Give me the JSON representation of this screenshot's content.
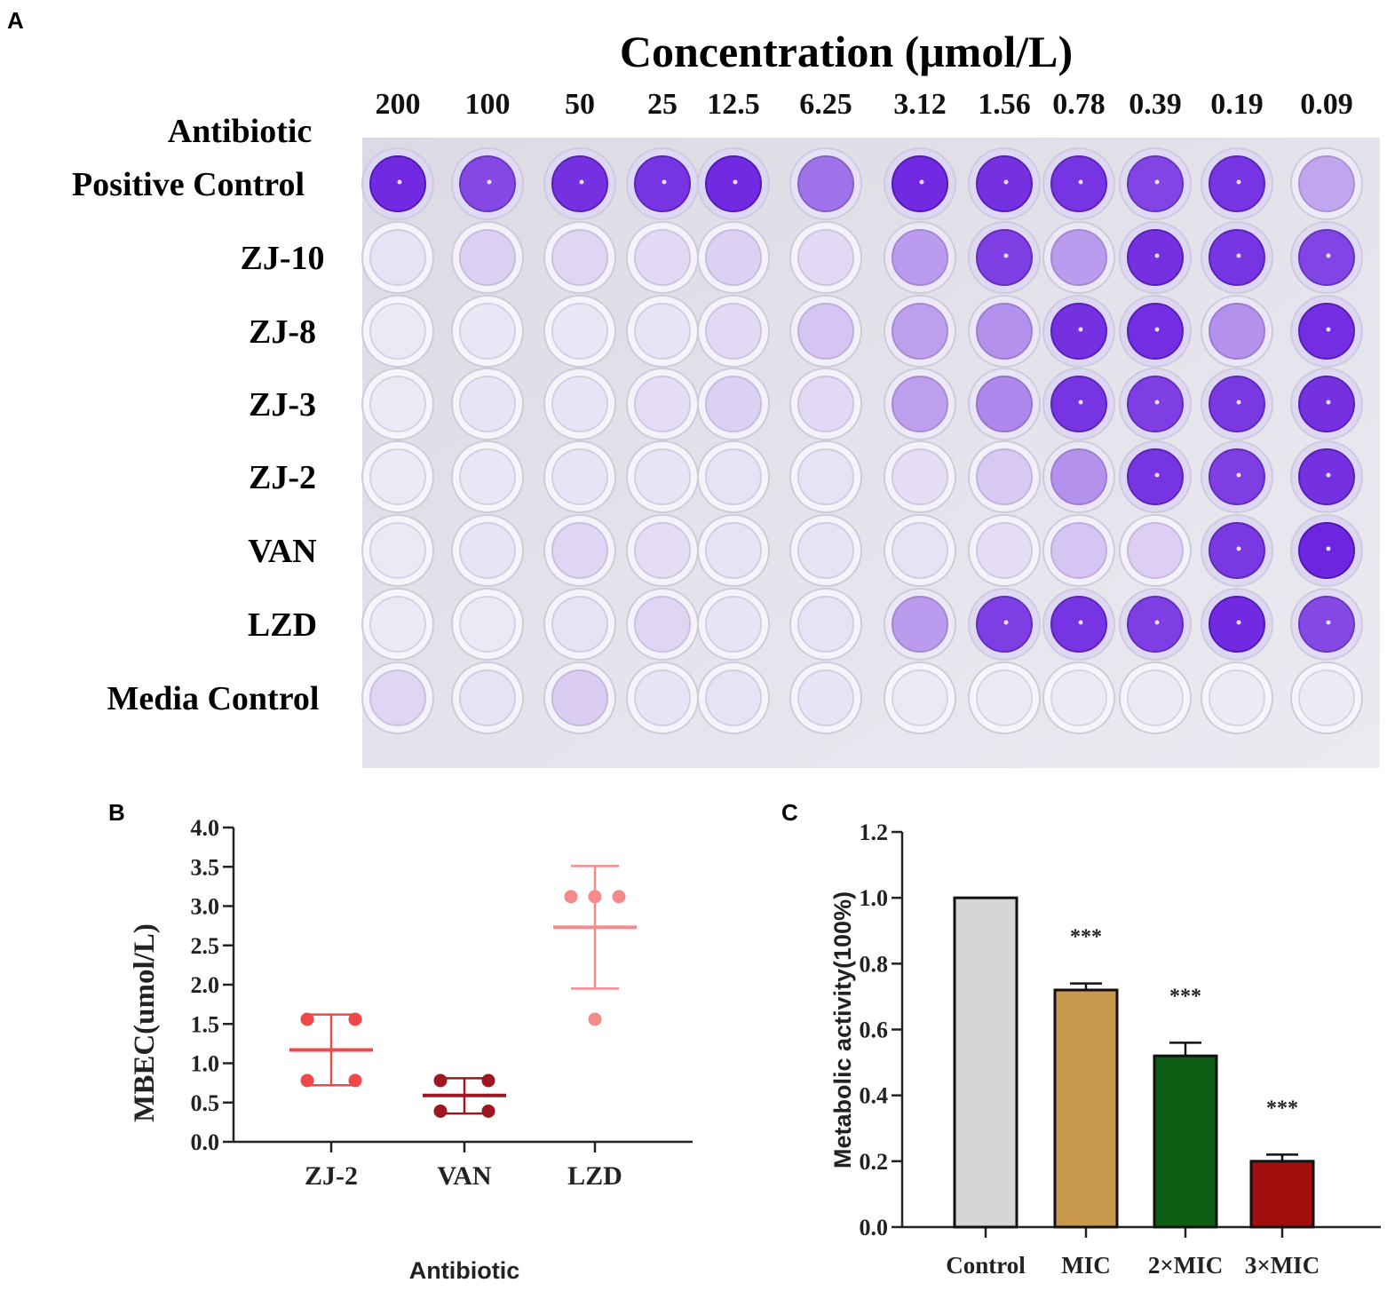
{
  "panels": {
    "a": "A",
    "b": "B",
    "c": "C"
  },
  "plate": {
    "title": "Concentration (μmol/L)",
    "row_header": "Antibiotic",
    "concentrations": [
      "200",
      "100",
      "50",
      "25",
      "12.5",
      "6.25",
      "3.12",
      "1.56",
      "0.78",
      "0.39",
      "0.19",
      "0.09"
    ],
    "rows": [
      {
        "label": "Positive  Control",
        "stain": [
          0.95,
          0.8,
          0.92,
          0.9,
          0.95,
          0.6,
          0.95,
          0.92,
          0.9,
          0.82,
          0.9,
          0.35
        ]
      },
      {
        "label": "ZJ-10",
        "stain": [
          0.06,
          0.14,
          0.12,
          0.1,
          0.14,
          0.1,
          0.4,
          0.85,
          0.4,
          0.92,
          0.9,
          0.82
        ]
      },
      {
        "label": "ZJ-8",
        "stain": [
          0.03,
          0.04,
          0.04,
          0.05,
          0.1,
          0.2,
          0.38,
          0.45,
          0.92,
          0.93,
          0.45,
          0.93
        ]
      },
      {
        "label": "ZJ-3",
        "stain": [
          0.03,
          0.05,
          0.05,
          0.08,
          0.14,
          0.1,
          0.38,
          0.5,
          0.9,
          0.85,
          0.88,
          0.92
        ]
      },
      {
        "label": "ZJ-2",
        "stain": [
          0.03,
          0.04,
          0.05,
          0.05,
          0.06,
          0.06,
          0.08,
          0.18,
          0.45,
          0.9,
          0.85,
          0.92
        ]
      },
      {
        "label": "VAN",
        "stain": [
          0.03,
          0.05,
          0.12,
          0.08,
          0.06,
          0.06,
          0.06,
          0.08,
          0.2,
          0.15,
          0.88,
          0.97
        ]
      },
      {
        "label": "LZD",
        "stain": [
          0.03,
          0.03,
          0.06,
          0.12,
          0.05,
          0.06,
          0.4,
          0.85,
          0.9,
          0.85,
          0.95,
          0.8
        ]
      },
      {
        "label": "Media Control",
        "stain": [
          0.12,
          0.06,
          0.16,
          0.05,
          0.06,
          0.05,
          0.03,
          0.02,
          0.02,
          0.02,
          0.02,
          0.02
        ]
      }
    ],
    "colors": {
      "stain": "#6a1fe0",
      "clear": "#f0eef6",
      "plate": "#e5e3ec"
    }
  },
  "chart_data": [
    {
      "type": "scatter",
      "panel": "B",
      "xlabel": "Antibiotic",
      "ylabel": "MBEC(umol/L)",
      "ylim": [
        0,
        4
      ],
      "yticks": [
        "0.0",
        "0.5",
        "1.0",
        "1.5",
        "2.0",
        "2.5",
        "3.0",
        "3.5",
        "4.0"
      ],
      "categories": [
        "ZJ-2",
        "VAN",
        "LZD"
      ],
      "groups": [
        {
          "name": "ZJ-2",
          "color": "#f04848",
          "points": [
            1.56,
            1.56,
            0.78,
            0.78
          ],
          "mean": 1.17,
          "sd_low": 0.72,
          "sd_high": 1.62
        },
        {
          "name": "VAN",
          "color": "#a01620",
          "points": [
            0.78,
            0.78,
            0.39,
            0.39
          ],
          "mean": 0.59,
          "sd_low": 0.36,
          "sd_high": 0.81
        },
        {
          "name": "LZD",
          "color": "#f48a8a",
          "points": [
            3.12,
            3.12,
            3.12,
            1.56
          ],
          "mean": 2.73,
          "sd_low": 1.95,
          "sd_high": 3.51
        }
      ]
    },
    {
      "type": "bar",
      "panel": "C",
      "ylabel": "Metabolic activity(100%)",
      "ylim": [
        0,
        1.2
      ],
      "yticks": [
        "0.0",
        "0.2",
        "0.4",
        "0.6",
        "0.8",
        "1.0",
        "1.2"
      ],
      "categories": [
        "Control",
        "MIC",
        "2×MIC",
        "3×MIC"
      ],
      "values": [
        1.0,
        0.72,
        0.52,
        0.2
      ],
      "errors": [
        0,
        0.02,
        0.04,
        0.02
      ],
      "significance": [
        "",
        "***",
        "***",
        "***"
      ],
      "colors": [
        "#d6d6d6",
        "#c9984f",
        "#0d5e14",
        "#a20d0d"
      ]
    }
  ]
}
